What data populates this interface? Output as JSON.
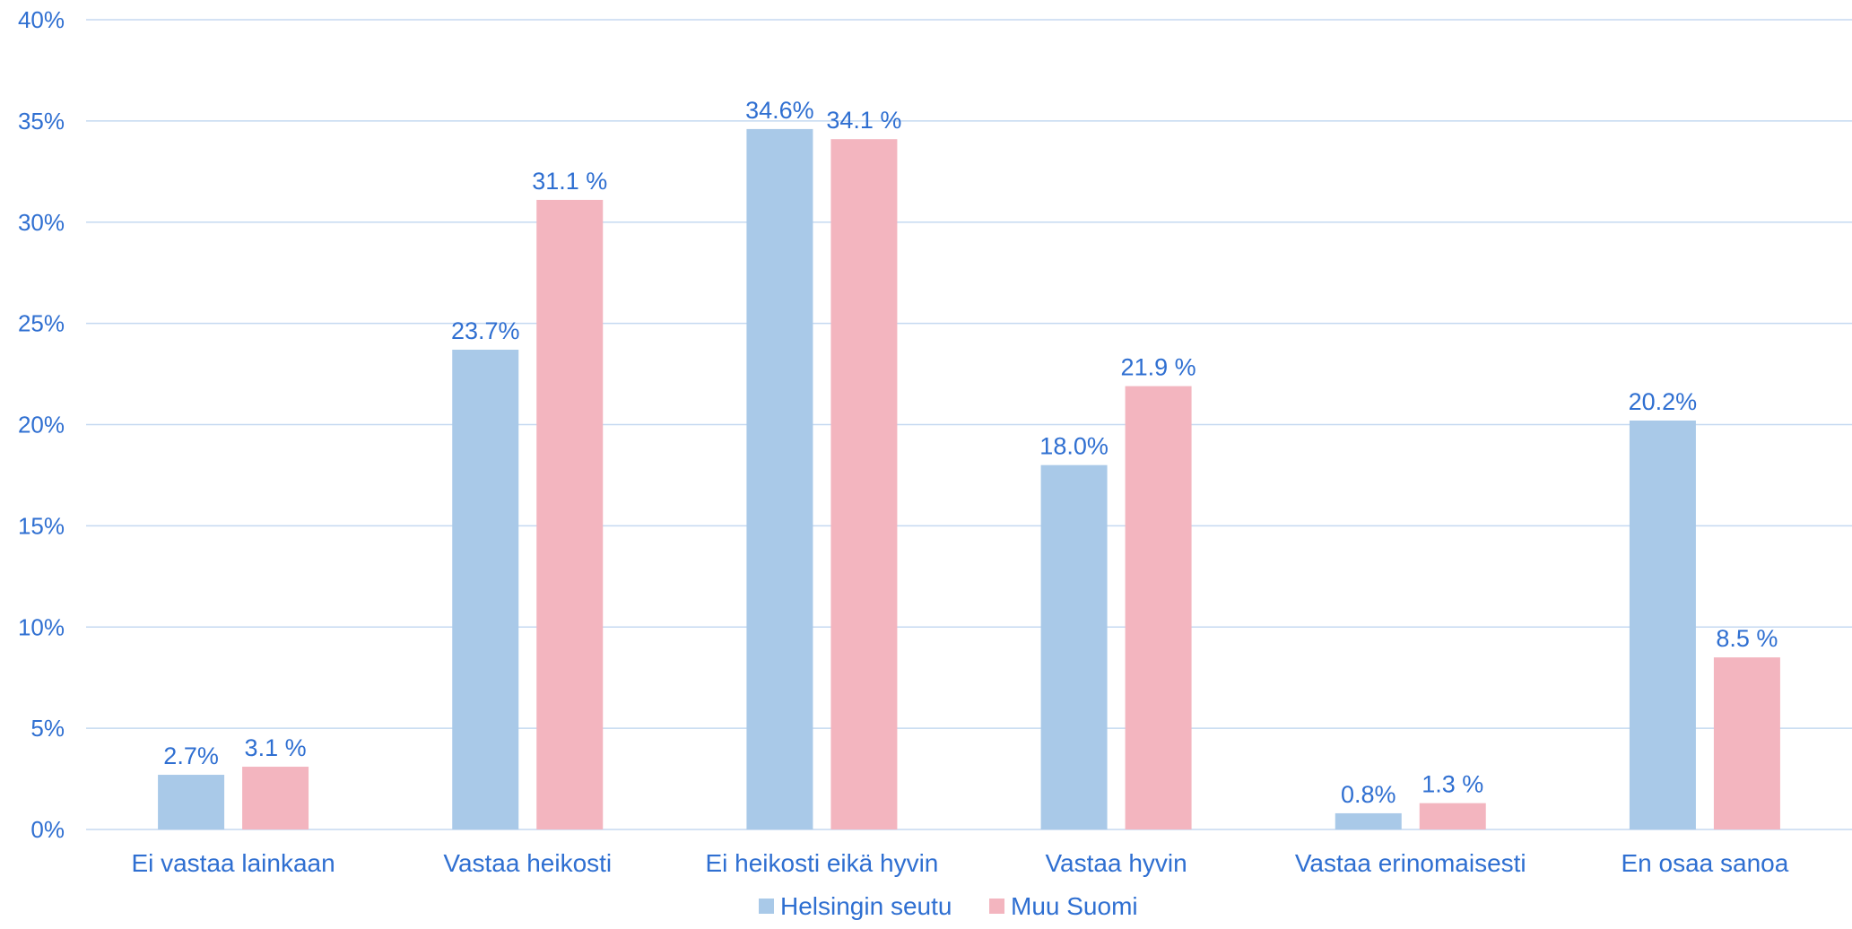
{
  "chart_data": {
    "type": "bar",
    "categories": [
      "Ei vastaa lainkaan",
      "Vastaa heikosti",
      "Ei heikosti eikä hyvin",
      "Vastaa hyvin",
      "Vastaa erinomaisesti",
      "En osaa sanoa"
    ],
    "series": [
      {
        "name": "Helsingin seutu",
        "color": "#A9C9E8",
        "values": [
          2.7,
          23.7,
          34.6,
          18.0,
          0.8,
          20.2
        ],
        "labels": [
          "2.7%",
          "23.7%",
          "34.6%",
          "18.0%",
          "0.8%",
          "20.2%"
        ]
      },
      {
        "name": "Muu Suomi",
        "color": "#F3B5BF",
        "values": [
          3.1,
          31.1,
          34.1,
          21.9,
          1.3,
          8.5
        ],
        "labels": [
          "3.1 %",
          "31.1 %",
          "34.1 %",
          "21.9 %",
          "1.3 %",
          "8.5 %"
        ]
      }
    ],
    "yticks": [
      "0%",
      "5%",
      "10%",
      "15%",
      "20%",
      "25%",
      "30%",
      "35%",
      "40%"
    ],
    "ylim": [
      0,
      40
    ],
    "grid": true,
    "gridColor": "#C5D9F1",
    "textColor": "#2F6FD1",
    "legend": "bottom-center",
    "title": "",
    "xlabel": "",
    "ylabel": ""
  }
}
